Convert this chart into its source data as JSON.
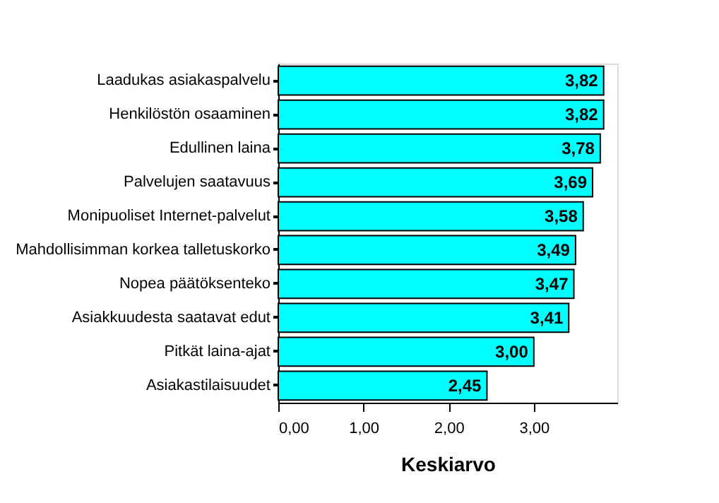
{
  "chart_data": {
    "type": "bar",
    "orientation": "horizontal",
    "xlabel": "Keskiarvo",
    "categories": [
      "Laadukas asiakaspalvelu",
      "Henkilöstön osaaminen",
      "Edullinen laina",
      "Palvelujen saatavuus",
      "Monipuoliset Internet-palvelut",
      "Mahdollisimman korkea talletuskorko",
      "Nopea päätöksenteko",
      "Asiakkuudesta saatavat edut",
      "Pitkät laina-ajat",
      "Asiakastilaisuudet"
    ],
    "values": [
      3.82,
      3.82,
      3.78,
      3.69,
      3.58,
      3.49,
      3.47,
      3.41,
      3.0,
      2.45
    ],
    "value_labels": [
      "3,82",
      "3,82",
      "3,78",
      "3,69",
      "3,58",
      "3,49",
      "3,47",
      "3,41",
      "3,00",
      "2,45"
    ],
    "color": "#00ffff",
    "xlim": [
      0,
      3.98
    ],
    "xticks": [
      {
        "value": 0,
        "label": "0,00"
      },
      {
        "value": 1,
        "label": "1,00"
      },
      {
        "value": 2,
        "label": "2,00"
      },
      {
        "value": 3,
        "label": "3,00"
      }
    ],
    "grid": false
  }
}
